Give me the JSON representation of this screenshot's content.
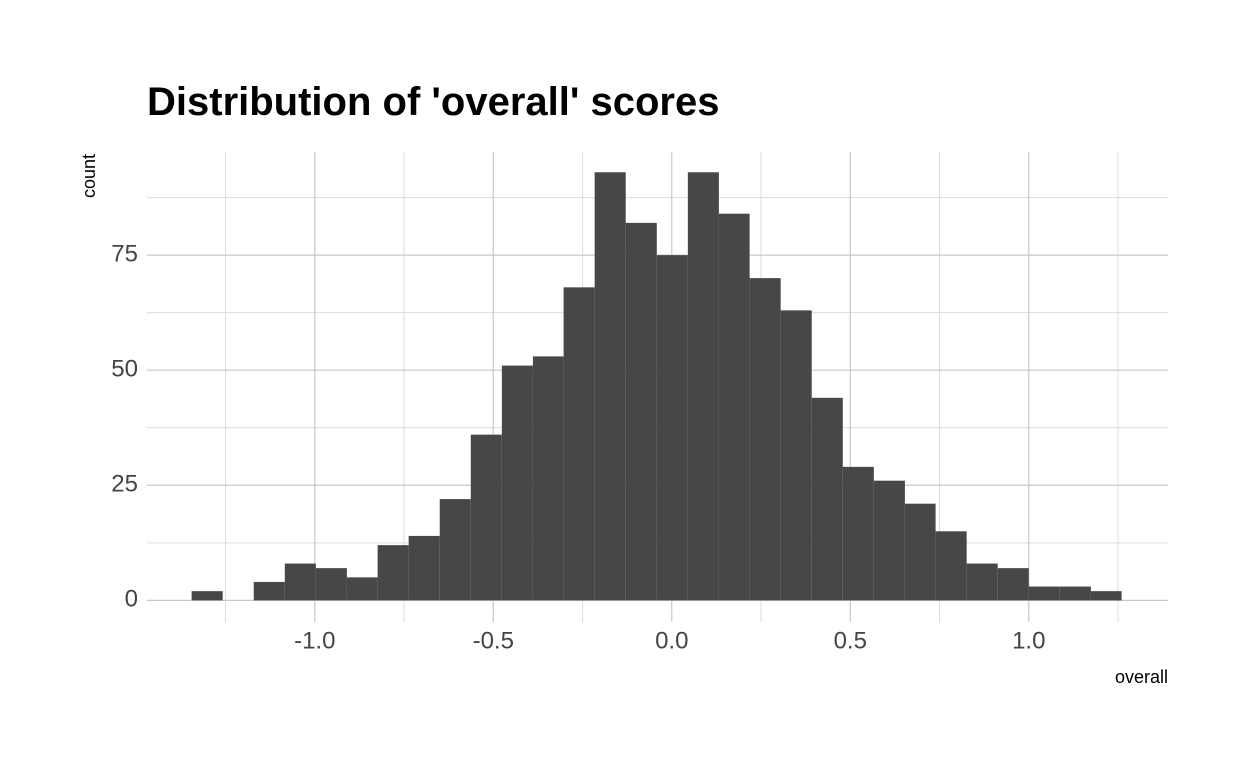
{
  "chart_data": {
    "type": "histogram",
    "title": "Distribution of 'overall' scores",
    "x_label": "overall",
    "y_label": "count",
    "bins": [
      -1.345,
      -1.258,
      -1.171,
      -1.084,
      -0.997,
      -0.91,
      -0.824,
      -0.737,
      -0.65,
      -0.563,
      -0.476,
      -0.389,
      -0.303,
      -0.216,
      -0.129,
      -0.042,
      0.045,
      0.132,
      0.218,
      0.305,
      0.392,
      0.479,
      0.566,
      0.653,
      0.739,
      0.826,
      0.913,
      1.0,
      1.087,
      1.174,
      1.26
    ],
    "values": [
      2,
      0,
      4,
      8,
      7,
      5,
      12,
      14,
      22,
      36,
      51,
      53,
      68,
      93,
      82,
      75,
      93,
      84,
      70,
      63,
      44,
      29,
      26,
      21,
      15,
      8,
      7,
      3,
      3,
      2
    ],
    "color": "#474747",
    "xlim": [
      -1.47,
      1.39
    ],
    "ylim": [
      -4.7,
      97.4
    ],
    "xticks": [
      {
        "value": -1,
        "label": "-1.0"
      },
      -0.5,
      {
        "value": 0,
        "label": "0.0"
      },
      0.5,
      {
        "value": 1,
        "label": "1.0"
      }
    ],
    "yticks": [
      0,
      25,
      50,
      75
    ],
    "x_minor_ticks": [
      -1.25,
      -0.75,
      -0.25,
      0.25,
      0.75,
      1.25
    ],
    "y_minor_ticks": [
      12.5,
      37.5,
      62.5,
      87.5
    ],
    "grid": true
  }
}
